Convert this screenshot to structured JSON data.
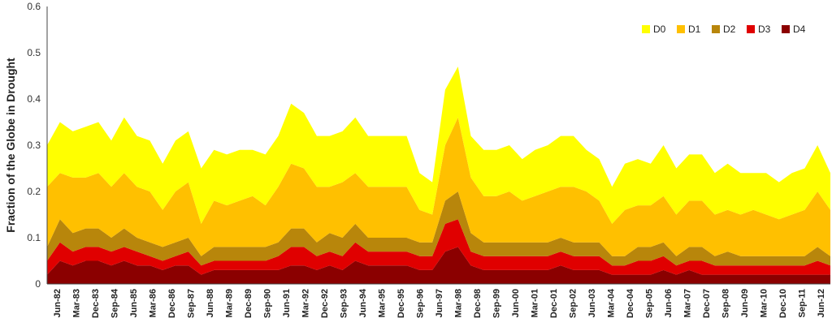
{
  "chart_data": {
    "type": "area",
    "stacked": true,
    "title": "",
    "ylabel": "Fraction of the Globe in Drought",
    "xlabel": "",
    "ylim": [
      0,
      0.6
    ],
    "yticks": [
      "0",
      "0.1",
      "0.2",
      "0.3",
      "0.4",
      "0.5",
      "0.6"
    ],
    "xticks": [
      "Jun-82",
      "Mar-83",
      "Dec-83",
      "Sep-84",
      "Jun-85",
      "Mar-86",
      "Dec-86",
      "Sep-87",
      "Jun-88",
      "Mar-89",
      "Dec-89",
      "Sep-90",
      "Jun-91",
      "Mar-92",
      "Dec-92",
      "Sep-93",
      "Jun-94",
      "Mar-95",
      "Dec-95",
      "Sep-96",
      "Jun-97",
      "Mar-98",
      "Dec-98",
      "Sep-99",
      "Jun-00",
      "Mar-01",
      "Dec-01",
      "Sep-02",
      "Jun-03",
      "Mar-04",
      "Dec-04",
      "Sep-05",
      "Jun-06",
      "Mar-07",
      "Dec-07",
      "Sep-08",
      "Jun-09",
      "Mar-10",
      "Dec-10",
      "Sep-11",
      "Jun-12"
    ],
    "x": [
      "Jun-82",
      "Dec-82",
      "Jun-83",
      "Dec-83",
      "Jun-84",
      "Dec-84",
      "Jun-85",
      "Dec-85",
      "Jun-86",
      "Dec-86",
      "Jun-87",
      "Dec-87",
      "Jun-88",
      "Dec-88",
      "Jun-89",
      "Dec-89",
      "Jun-90",
      "Dec-90",
      "Jun-91",
      "Dec-91",
      "Jun-92",
      "Dec-92",
      "Jun-93",
      "Dec-93",
      "Jun-94",
      "Dec-94",
      "Jun-95",
      "Dec-95",
      "Jun-96",
      "Dec-96",
      "Jun-97",
      "Dec-97",
      "Jun-98",
      "Dec-98",
      "Jun-99",
      "Dec-99",
      "Jun-00",
      "Dec-00",
      "Jun-01",
      "Dec-01",
      "Jun-02",
      "Dec-02",
      "Jun-03",
      "Dec-03",
      "Jun-04",
      "Dec-04",
      "Jun-05",
      "Dec-05",
      "Jun-06",
      "Dec-06",
      "Jun-07",
      "Dec-07",
      "Jun-08",
      "Dec-08",
      "Jun-09",
      "Dec-09",
      "Jun-10",
      "Dec-10",
      "Jun-11",
      "Dec-11",
      "Jun-12",
      "Dec-12"
    ],
    "series": [
      {
        "name": "D4",
        "color": "#8B0000",
        "values": [
          0.02,
          0.05,
          0.04,
          0.05,
          0.05,
          0.04,
          0.05,
          0.04,
          0.04,
          0.03,
          0.04,
          0.04,
          0.02,
          0.03,
          0.03,
          0.03,
          0.03,
          0.03,
          0.03,
          0.04,
          0.04,
          0.03,
          0.04,
          0.03,
          0.05,
          0.04,
          0.04,
          0.04,
          0.04,
          0.03,
          0.03,
          0.07,
          0.08,
          0.04,
          0.03,
          0.03,
          0.03,
          0.03,
          0.03,
          0.03,
          0.04,
          0.03,
          0.03,
          0.03,
          0.02,
          0.02,
          0.02,
          0.02,
          0.03,
          0.02,
          0.03,
          0.02,
          0.02,
          0.02,
          0.02,
          0.02,
          0.02,
          0.02,
          0.02,
          0.02,
          0.02,
          0.02
        ]
      },
      {
        "name": "D3",
        "color": "#E00000",
        "values": [
          0.03,
          0.04,
          0.03,
          0.03,
          0.03,
          0.03,
          0.03,
          0.03,
          0.02,
          0.02,
          0.02,
          0.03,
          0.02,
          0.02,
          0.02,
          0.02,
          0.02,
          0.02,
          0.03,
          0.04,
          0.04,
          0.03,
          0.03,
          0.03,
          0.04,
          0.03,
          0.03,
          0.03,
          0.03,
          0.03,
          0.03,
          0.06,
          0.06,
          0.03,
          0.03,
          0.03,
          0.03,
          0.03,
          0.03,
          0.03,
          0.03,
          0.03,
          0.03,
          0.03,
          0.02,
          0.02,
          0.03,
          0.03,
          0.03,
          0.02,
          0.02,
          0.03,
          0.02,
          0.02,
          0.02,
          0.02,
          0.02,
          0.02,
          0.02,
          0.02,
          0.03,
          0.02
        ]
      },
      {
        "name": "D2",
        "color": "#B8860B",
        "values": [
          0.03,
          0.05,
          0.04,
          0.04,
          0.04,
          0.03,
          0.04,
          0.03,
          0.03,
          0.03,
          0.03,
          0.03,
          0.02,
          0.03,
          0.03,
          0.03,
          0.03,
          0.03,
          0.03,
          0.04,
          0.04,
          0.03,
          0.04,
          0.04,
          0.04,
          0.03,
          0.03,
          0.03,
          0.03,
          0.03,
          0.03,
          0.05,
          0.06,
          0.04,
          0.03,
          0.03,
          0.03,
          0.03,
          0.03,
          0.03,
          0.03,
          0.03,
          0.03,
          0.03,
          0.02,
          0.02,
          0.03,
          0.03,
          0.03,
          0.02,
          0.03,
          0.03,
          0.02,
          0.03,
          0.02,
          0.02,
          0.02,
          0.02,
          0.02,
          0.02,
          0.03,
          0.02
        ]
      },
      {
        "name": "D1",
        "color": "#FFC000",
        "values": [
          0.13,
          0.1,
          0.12,
          0.11,
          0.12,
          0.11,
          0.12,
          0.11,
          0.11,
          0.08,
          0.11,
          0.12,
          0.07,
          0.1,
          0.09,
          0.1,
          0.11,
          0.09,
          0.12,
          0.14,
          0.13,
          0.12,
          0.1,
          0.12,
          0.11,
          0.11,
          0.11,
          0.11,
          0.11,
          0.07,
          0.06,
          0.12,
          0.16,
          0.12,
          0.1,
          0.1,
          0.11,
          0.09,
          0.1,
          0.11,
          0.11,
          0.12,
          0.11,
          0.09,
          0.07,
          0.1,
          0.09,
          0.09,
          0.1,
          0.09,
          0.1,
          0.1,
          0.09,
          0.09,
          0.09,
          0.1,
          0.09,
          0.08,
          0.09,
          0.1,
          0.12,
          0.1
        ]
      },
      {
        "name": "D0",
        "color": "#FFFF00",
        "values": [
          0.09,
          0.11,
          0.1,
          0.11,
          0.11,
          0.1,
          0.12,
          0.11,
          0.11,
          0.1,
          0.11,
          0.11,
          0.12,
          0.11,
          0.11,
          0.11,
          0.1,
          0.11,
          0.11,
          0.13,
          0.12,
          0.11,
          0.11,
          0.11,
          0.12,
          0.11,
          0.11,
          0.11,
          0.11,
          0.08,
          0.07,
          0.12,
          0.11,
          0.09,
          0.1,
          0.1,
          0.1,
          0.09,
          0.1,
          0.1,
          0.11,
          0.11,
          0.09,
          0.09,
          0.08,
          0.1,
          0.1,
          0.09,
          0.11,
          0.1,
          0.1,
          0.1,
          0.09,
          0.1,
          0.09,
          0.08,
          0.09,
          0.08,
          0.09,
          0.09,
          0.1,
          0.08
        ]
      }
    ],
    "legend": {
      "placement": "top-right",
      "entries": [
        {
          "label": "D0",
          "color": "#FFFF00"
        },
        {
          "label": "D1",
          "color": "#FFC000"
        },
        {
          "label": "D2",
          "color": "#B8860B"
        },
        {
          "label": "D3",
          "color": "#E00000"
        },
        {
          "label": "D4",
          "color": "#8B0000"
        }
      ]
    },
    "grid": false
  }
}
